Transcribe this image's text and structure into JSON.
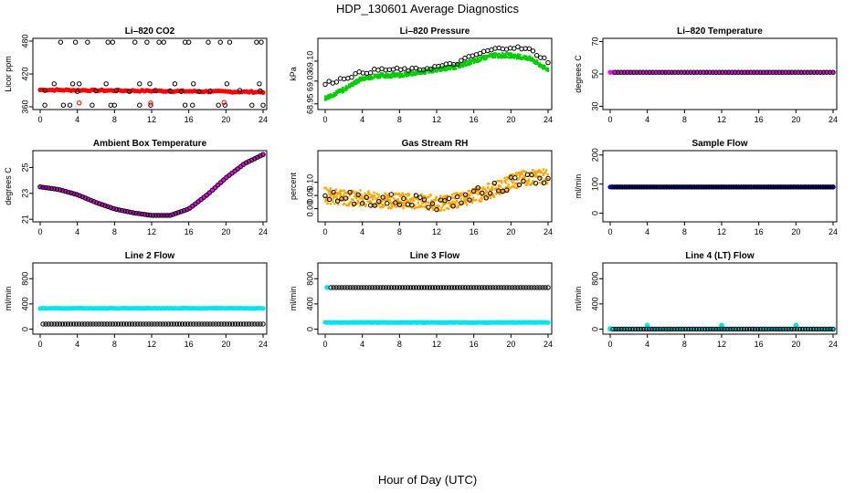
{
  "figure": {
    "title": "HDP_130601  Average Diagnostics",
    "xlabel": "Hour of Day (UTC)"
  },
  "chart_data": [
    {
      "type": "scatter",
      "title": "Li–820 CO2",
      "ylabel": "Licor ppm",
      "xlim": [
        0,
        24
      ],
      "ylim": [
        355,
        485
      ],
      "xticks": [
        0,
        4,
        8,
        12,
        16,
        20,
        24
      ],
      "yticks": [
        360,
        420,
        480
      ],
      "ytick_labels": [
        "360",
        "420",
        "480"
      ],
      "series": [
        {
          "name": "avg",
          "color": "#ff0000",
          "style": "dense",
          "x_start": 0,
          "x_end": 24,
          "n": 95,
          "y_start": 391,
          "y_end": 387,
          "noise": 1.2
        },
        {
          "name": "raw_high",
          "color": "#000000",
          "style": "open",
          "x": [
            2.2,
            3.8,
            5.1,
            7.3,
            7.8,
            10.2,
            11.5,
            12.8,
            13.3,
            15.6,
            16.0,
            18.1,
            19.4,
            20.4,
            23.3,
            23.8
          ],
          "y": [
            478,
            478,
            478,
            478,
            478,
            478,
            478,
            478,
            478,
            478,
            478,
            478,
            478,
            478,
            478,
            478
          ]
        },
        {
          "name": "raw_mid",
          "color": "#000000",
          "style": "open",
          "x": [
            1.5,
            3.5,
            4.2,
            7.1,
            10.7,
            11.8,
            14.5,
            16.5,
            20.1,
            23.6
          ],
          "y": [
            402,
            402,
            402,
            402,
            402,
            402,
            402,
            402,
            402,
            402
          ]
        },
        {
          "name": "raw_band",
          "color": "#000000",
          "style": "open",
          "x": [
            0.5,
            4.0,
            6.0,
            8.2,
            9.6,
            12.4,
            14.0,
            15.2,
            17.1,
            18.3,
            21.5,
            23.7
          ],
          "y": [
            390,
            388,
            389,
            390,
            388,
            390,
            389,
            388,
            388,
            389,
            390,
            389
          ]
        },
        {
          "name": "raw_low",
          "color": "#000000",
          "style": "open",
          "x": [
            0.5,
            2.5,
            3.2,
            5.6,
            7.6,
            8.0,
            10.7,
            11.9,
            15.6,
            16.4,
            19.2,
            19.9,
            22.8,
            24.0
          ],
          "y": [
            363,
            363,
            363,
            363,
            363,
            363,
            363,
            363,
            363,
            363,
            363,
            363,
            363,
            363
          ]
        },
        {
          "name": "red_outliers",
          "color": "#ff0000",
          "style": "open",
          "x": [
            4.2,
            11.9,
            19.8
          ],
          "y": [
            367,
            367,
            368
          ]
        }
      ]
    },
    {
      "type": "scatter",
      "title": "Li–820 Pressure",
      "ylabel": "kPa",
      "xlim": [
        0,
        24
      ],
      "ylim": [
        68.93,
        69.18
      ],
      "xticks": [
        0,
        4,
        8,
        12,
        16,
        20,
        24
      ],
      "yticks": [
        68.95,
        69.03,
        69.1
      ],
      "ytick_labels": [
        "68.95",
        "69.03",
        "69.10"
      ],
      "series": [
        {
          "name": "green",
          "color": "#00cc00",
          "style": "band",
          "noise": 0.008,
          "x": [
            0,
            2,
            4,
            6,
            8,
            10,
            12,
            14,
            16,
            18,
            20,
            22,
            24
          ],
          "y": [
            68.97,
            69.0,
            69.04,
            69.05,
            69.05,
            69.06,
            69.07,
            69.08,
            69.1,
            69.12,
            69.12,
            69.11,
            69.07
          ]
        },
        {
          "name": "black",
          "color": "#000000",
          "style": "open",
          "noise": 0.006,
          "n": 60,
          "x": [
            0,
            2,
            4,
            6,
            8,
            10,
            12,
            14,
            16,
            18,
            20,
            22,
            24
          ],
          "y": [
            69.02,
            69.04,
            69.06,
            69.07,
            69.07,
            69.07,
            69.08,
            69.09,
            69.12,
            69.14,
            69.15,
            69.14,
            69.1
          ]
        }
      ]
    },
    {
      "type": "scatter",
      "title": "Li–820 Temperature",
      "ylabel": "degrees C",
      "xlim": [
        0,
        24
      ],
      "ylim": [
        28,
        72
      ],
      "xticks": [
        0,
        4,
        8,
        12,
        16,
        20,
        24
      ],
      "yticks": [
        30,
        50,
        70
      ],
      "ytick_labels": [
        "30",
        "50",
        "70"
      ],
      "series": [
        {
          "name": "magenta",
          "color": "#ff00ff",
          "style": "dense",
          "x_start": 0,
          "x_end": 24,
          "n": 70,
          "y_start": 51,
          "y_end": 51,
          "noise": 0
        },
        {
          "name": "black",
          "color": "#000000",
          "style": "open",
          "x_start": 0.5,
          "x_end": 24,
          "n": 70,
          "y_start": 51,
          "y_end": 51,
          "noise": 0
        }
      ]
    },
    {
      "type": "scatter",
      "title": "Ambient Box Temperature",
      "ylabel": "degrees C",
      "xlim": [
        0,
        24
      ],
      "ylim": [
        20.8,
        26.3
      ],
      "xticks": [
        0,
        4,
        8,
        12,
        16,
        20,
        24
      ],
      "yticks": [
        21,
        23,
        25
      ],
      "ytick_labels": [
        "21",
        "23",
        "25"
      ],
      "series": [
        {
          "name": "magenta",
          "color": "#ff00ff",
          "style": "dense",
          "n": 110,
          "noise": 0,
          "x": [
            0,
            2,
            4,
            6,
            8,
            10,
            12,
            14,
            16,
            18,
            20,
            22,
            24
          ],
          "y": [
            23.5,
            23.3,
            22.9,
            22.3,
            21.8,
            21.5,
            21.3,
            21.3,
            21.8,
            22.9,
            24.2,
            25.3,
            26.0
          ]
        },
        {
          "name": "black",
          "color": "#000000",
          "style": "open",
          "n": 80,
          "noise": 0,
          "x": [
            0,
            2,
            4,
            6,
            8,
            10,
            12,
            14,
            16,
            18,
            20,
            22,
            24
          ],
          "y": [
            23.5,
            23.3,
            22.9,
            22.3,
            21.8,
            21.5,
            21.3,
            21.3,
            21.8,
            22.9,
            24.2,
            25.3,
            26.0
          ]
        }
      ]
    },
    {
      "type": "scatter",
      "title": "Gas Stream RH",
      "ylabel": "percent",
      "xlim": [
        0,
        24
      ],
      "ylim": [
        -0.05,
        0.22
      ],
      "xticks": [
        0,
        4,
        8,
        12,
        16,
        20,
        24
      ],
      "yticks": [
        0.0,
        0.05,
        0.1
      ],
      "ytick_labels": [
        "0.00",
        "0.05",
        "0.10"
      ],
      "series": [
        {
          "name": "orange",
          "color": "#ffa500",
          "style": "band",
          "noise": 0.03,
          "x": [
            0,
            2,
            4,
            6,
            8,
            10,
            12,
            14,
            16,
            18,
            20,
            22,
            24
          ],
          "y": [
            0.05,
            0.04,
            0.04,
            0.03,
            0.03,
            0.03,
            0.02,
            0.03,
            0.05,
            0.07,
            0.1,
            0.12,
            0.12
          ]
        },
        {
          "name": "black",
          "color": "#000000",
          "style": "open",
          "n": 55,
          "noise": 0.025,
          "x": [
            0,
            2,
            4,
            6,
            8,
            10,
            12,
            14,
            16,
            18,
            20,
            22,
            24
          ],
          "y": [
            0.05,
            0.04,
            0.04,
            0.03,
            0.03,
            0.03,
            0.02,
            0.03,
            0.05,
            0.07,
            0.1,
            0.12,
            0.12
          ]
        }
      ]
    },
    {
      "type": "scatter",
      "title": "Sample Flow",
      "ylabel": "ml/min",
      "xlim": [
        0,
        24
      ],
      "ylim": [
        -30,
        215
      ],
      "xticks": [
        0,
        4,
        8,
        12,
        16,
        20,
        24
      ],
      "yticks": [
        0,
        100,
        200
      ],
      "ytick_labels": [
        "0",
        "100",
        "200"
      ],
      "series": [
        {
          "name": "blue",
          "color": "#0000ff",
          "style": "dense",
          "x_start": 0,
          "x_end": 24,
          "n": 110,
          "y_start": 90,
          "y_end": 90,
          "noise": 0
        },
        {
          "name": "black",
          "color": "#000000",
          "style": "open",
          "x_start": 0.2,
          "x_end": 24,
          "n": 90,
          "y_start": 90,
          "y_end": 90,
          "noise": 0
        }
      ]
    },
    {
      "type": "scatter",
      "title": "Line 2 Flow",
      "ylabel": "ml/min",
      "xlim": [
        0,
        24
      ],
      "ylim": [
        -80,
        1050
      ],
      "xticks": [
        0,
        4,
        8,
        12,
        16,
        20,
        24
      ],
      "yticks": [
        0,
        400,
        800
      ],
      "ytick_labels": [
        "0",
        "400",
        "800"
      ],
      "series": [
        {
          "name": "cyan",
          "color": "#00e5ee",
          "style": "dense",
          "x_start": 0,
          "x_end": 24,
          "n": 110,
          "y_start": 330,
          "y_end": 330,
          "noise": 3
        },
        {
          "name": "black",
          "color": "#000000",
          "style": "open",
          "x_start": 0.3,
          "x_end": 24,
          "n": 80,
          "y_start": 80,
          "y_end": 80,
          "noise": 0
        }
      ]
    },
    {
      "type": "scatter",
      "title": "Line 3 Flow",
      "ylabel": "ml/min",
      "xlim": [
        0,
        24
      ],
      "ylim": [
        -80,
        1050
      ],
      "xticks": [
        0,
        4,
        8,
        12,
        16,
        20,
        24
      ],
      "yticks": [
        0,
        400,
        800
      ],
      "ytick_labels": [
        "0",
        "400",
        "800"
      ],
      "series": [
        {
          "name": "cyan",
          "color": "#00e5ee",
          "style": "dense",
          "x_start": 0,
          "x_end": 24,
          "n": 110,
          "y_start": 105,
          "y_end": 105,
          "noise": 3
        },
        {
          "name": "cyan_start",
          "color": "#00e5ee",
          "style": "dot",
          "x": [
            0.2
          ],
          "y": [
            660
          ]
        },
        {
          "name": "black",
          "color": "#000000",
          "style": "open",
          "x_start": 0.6,
          "x_end": 24,
          "n": 80,
          "y_start": 660,
          "y_end": 660,
          "noise": 0
        }
      ]
    },
    {
      "type": "scatter",
      "title": "Line 4 (LT) Flow",
      "ylabel": "ml/min",
      "xlim": [
        0,
        24
      ],
      "ylim": [
        -80,
        1050
      ],
      "xticks": [
        0,
        4,
        8,
        12,
        16,
        20,
        24
      ],
      "yticks": [
        0,
        400,
        800
      ],
      "ytick_labels": [
        "0",
        "400",
        "800"
      ],
      "series": [
        {
          "name": "cyan",
          "color": "#00e5ee",
          "style": "dense",
          "x_start": 0,
          "x_end": 24,
          "n": 60,
          "y_start": 0,
          "y_end": 0,
          "noise": 0
        },
        {
          "name": "cyan_spikes",
          "color": "#00e5ee",
          "style": "dot",
          "x": [
            0,
            4,
            12,
            20
          ],
          "y": [
            5,
            60,
            60,
            60
          ]
        },
        {
          "name": "black",
          "color": "#000000",
          "style": "open",
          "x_start": 0.3,
          "x_end": 24,
          "n": 80,
          "y_start": 0,
          "y_end": 0,
          "noise": 0
        }
      ]
    }
  ]
}
